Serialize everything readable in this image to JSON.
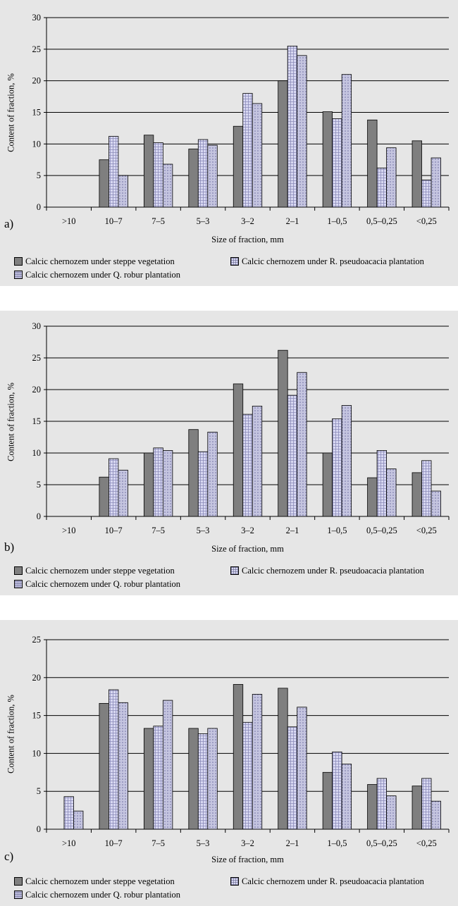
{
  "panels": [
    {
      "letter": "a)",
      "xtitle": "Size of fraction, mm",
      "ytitle": "Content of fraction, %"
    },
    {
      "letter": "b)",
      "xtitle": "Size of fraction, mm",
      "ytitle": "Content of fraction, %"
    },
    {
      "letter": "c)",
      "xtitle": "Size of fraction, mm",
      "ytitle": "Content of fraction, %"
    }
  ],
  "legend": {
    "steppe": "Calcic chernozem under steppe vegetation",
    "robinia": "Calcic chernozem under R. pseudoacacia plantation",
    "quercus": "Calcic chernozem under Q. robur plantation"
  },
  "colors": {
    "steppe": "#7f7f7f",
    "robinia": "#d8d8f2",
    "quercus": "#c5c5e0",
    "background": "#e6e6e6",
    "grid": "#000000"
  },
  "chart_data": [
    {
      "type": "bar",
      "panel": "a)",
      "xlabel": "Size of fraction, mm",
      "ylabel": "Content of fraction, %",
      "ylim": [
        0,
        30
      ],
      "yticks": [
        0,
        5,
        10,
        15,
        20,
        25,
        30
      ],
      "grid": true,
      "legend_position": "bottom",
      "categories": [
        ">10",
        "10–7",
        "7–5",
        "5–3",
        "3–2",
        "2–1",
        "1–0,5",
        "0,5–0,25",
        "<0,25"
      ],
      "series": [
        {
          "name": "Calcic chernozem under steppe vegetation",
          "values": [
            0,
            7.5,
            11.4,
            9.2,
            12.8,
            20.0,
            15.1,
            13.8,
            10.5
          ]
        },
        {
          "name": "Calcic chernozem under R. pseudoacacia plantation",
          "values": [
            0,
            11.2,
            10.2,
            10.7,
            18.0,
            25.5,
            14.0,
            6.2,
            4.3
          ]
        },
        {
          "name": "Calcic chernozem under Q. robur plantation",
          "values": [
            0,
            5.0,
            6.8,
            9.8,
            16.4,
            24.0,
            21.0,
            9.4,
            7.8
          ]
        }
      ]
    },
    {
      "type": "bar",
      "panel": "b)",
      "xlabel": "Size of fraction, mm",
      "ylabel": "Content of fraction, %",
      "ylim": [
        0,
        30
      ],
      "yticks": [
        0,
        5,
        10,
        15,
        20,
        25,
        30
      ],
      "grid": true,
      "legend_position": "bottom",
      "categories": [
        ">10",
        "10–7",
        "7–5",
        "5–3",
        "3–2",
        "2–1",
        "1–0,5",
        "0,5–0,25",
        "<0,25"
      ],
      "series": [
        {
          "name": "Calcic chernozem under steppe vegetation",
          "values": [
            0,
            6.2,
            10.0,
            13.7,
            20.9,
            26.2,
            10.0,
            6.1,
            6.9
          ]
        },
        {
          "name": "Calcic chernozem under R. pseudoacacia plantation",
          "values": [
            0,
            9.1,
            10.8,
            10.2,
            16.1,
            19.1,
            15.4,
            10.4,
            8.8
          ]
        },
        {
          "name": "Calcic chernozem under Q. robur plantation",
          "values": [
            0,
            7.3,
            10.4,
            13.3,
            17.4,
            22.7,
            17.5,
            7.5,
            4.0
          ]
        }
      ]
    },
    {
      "type": "bar",
      "panel": "c)",
      "xlabel": "Size of fraction, mm",
      "ylabel": "Content of fraction, %",
      "ylim": [
        0,
        25
      ],
      "yticks": [
        0,
        5,
        10,
        15,
        20,
        25
      ],
      "grid": true,
      "legend_position": "bottom",
      "categories": [
        ">10",
        "10–7",
        "7–5",
        "5–3",
        "3–2",
        "2–1",
        "1–0,5",
        "0,5–0,25",
        "<0,25"
      ],
      "series": [
        {
          "name": "Calcic chernozem under steppe vegetation",
          "values": [
            0,
            16.6,
            13.3,
            13.3,
            19.1,
            18.6,
            7.5,
            5.9,
            5.7
          ]
        },
        {
          "name": "Calcic chernozem under R. pseudoacacia plantation",
          "values": [
            4.3,
            18.4,
            13.6,
            12.6,
            14.1,
            13.5,
            10.2,
            6.7,
            6.7
          ]
        },
        {
          "name": "Calcic chernozem under Q. robur plantation",
          "values": [
            2.4,
            16.7,
            17.0,
            13.3,
            17.8,
            16.1,
            8.6,
            4.4,
            3.7
          ]
        }
      ]
    }
  ]
}
